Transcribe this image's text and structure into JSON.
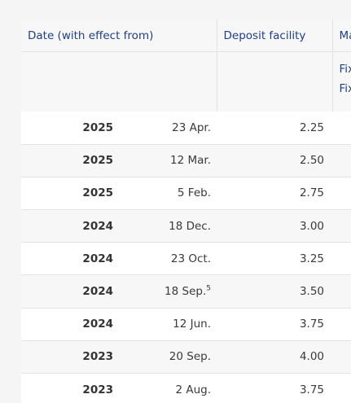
{
  "header": {
    "date_col": "Date (with effect from)",
    "deposit_col": "Deposit facility",
    "next_col": "Ma",
    "sub_next_line1": "Fix",
    "sub_next_line2": "Fix"
  },
  "rows": [
    {
      "year": "2025",
      "day": "23 Apr.",
      "note": "",
      "deposit": "2.25"
    },
    {
      "year": "2025",
      "day": "12 Mar.",
      "note": "",
      "deposit": "2.50"
    },
    {
      "year": "2025",
      "day": "5 Feb.",
      "note": "",
      "deposit": "2.75"
    },
    {
      "year": "2024",
      "day": "18 Dec.",
      "note": "",
      "deposit": "3.00"
    },
    {
      "year": "2024",
      "day": "23 Oct.",
      "note": "",
      "deposit": "3.25"
    },
    {
      "year": "2024",
      "day": "18 Sep.",
      "note": "5",
      "deposit": "3.50"
    },
    {
      "year": "2024",
      "day": "12 Jun.",
      "note": "",
      "deposit": "3.75"
    },
    {
      "year": "2023",
      "day": "20 Sep.",
      "note": "",
      "deposit": "4.00"
    },
    {
      "year": "2023",
      "day": "2 Aug.",
      "note": "",
      "deposit": "3.75"
    }
  ]
}
